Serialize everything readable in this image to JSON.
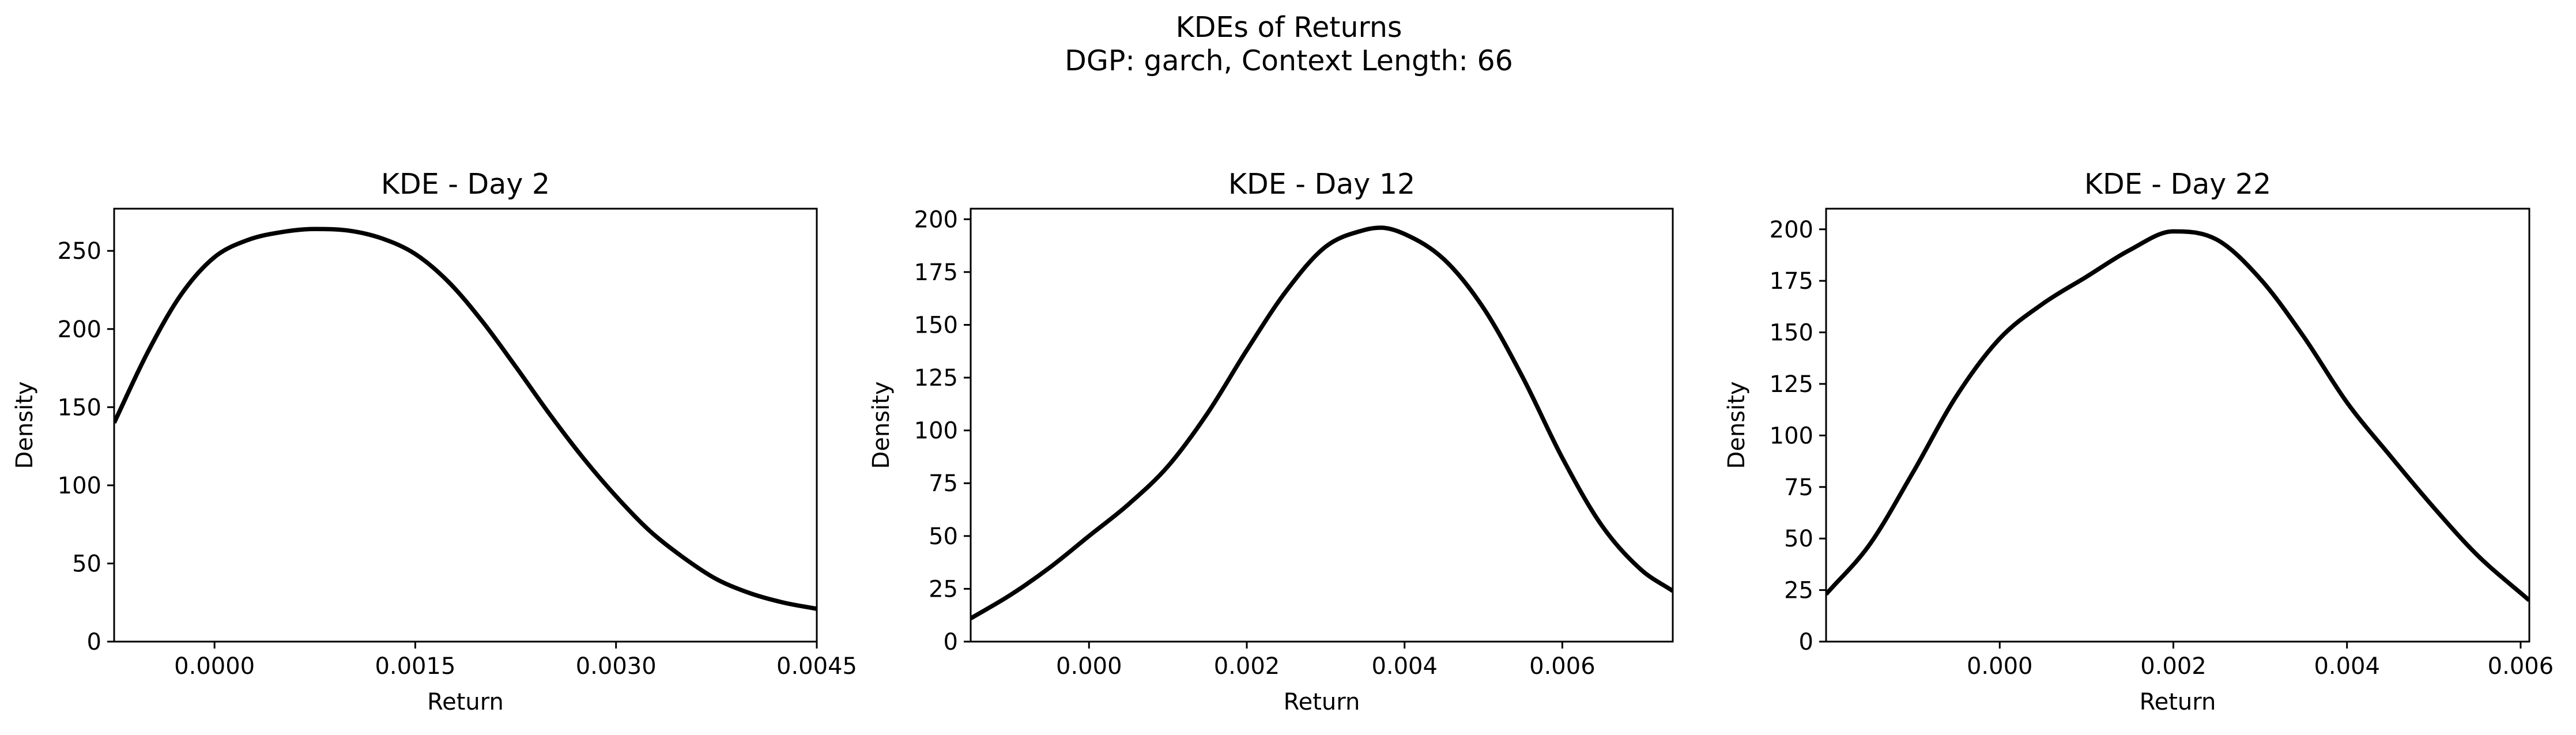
{
  "figure": {
    "title_line1": "KDEs of Returns",
    "title_line2": "DGP: garch, Context Length: 66"
  },
  "chart_data": [
    {
      "type": "line",
      "title": "KDE - Day 2",
      "xlabel": "Return",
      "ylabel": "Density",
      "xlim": [
        -0.00075,
        0.0045
      ],
      "ylim": [
        0,
        277
      ],
      "xticks": [
        0.0,
        0.0015,
        0.003,
        0.0045
      ],
      "xtick_labels": [
        "0.0000",
        "0.0015",
        "0.0030",
        "0.0045"
      ],
      "yticks": [
        0,
        50,
        100,
        150,
        200,
        250
      ],
      "ytick_labels": [
        "0",
        "50",
        "100",
        "150",
        "200",
        "250"
      ],
      "grid": false,
      "color": "#000000",
      "series": [
        {
          "x": [
            -0.00075,
            -0.0005,
            -0.00025,
            0.0,
            0.00025,
            0.0005,
            0.00075,
            0.001,
            0.00125,
            0.0015,
            0.00175,
            0.002,
            0.00225,
            0.0025,
            0.00275,
            0.003,
            0.00325,
            0.0035,
            0.00375,
            0.004,
            0.00425,
            0.0045
          ],
          "y": [
            140,
            185,
            222,
            246,
            257,
            262,
            264,
            263,
            258,
            248,
            230,
            205,
            176,
            146,
            118,
            93,
            71,
            54,
            40,
            31,
            25,
            21
          ]
        }
      ]
    },
    {
      "type": "line",
      "title": "KDE - Day 12",
      "xlabel": "Return",
      "ylabel": "Density",
      "xlim": [
        -0.0015,
        0.0074
      ],
      "ylim": [
        0,
        205
      ],
      "xticks": [
        0.0,
        0.002,
        0.004,
        0.006
      ],
      "xtick_labels": [
        "0.000",
        "0.002",
        "0.004",
        "0.006"
      ],
      "yticks": [
        0,
        25,
        50,
        75,
        100,
        125,
        150,
        175,
        200
      ],
      "ytick_labels": [
        "0",
        "25",
        "50",
        "75",
        "100",
        "125",
        "150",
        "175",
        "200"
      ],
      "grid": false,
      "color": "#000000",
      "series": [
        {
          "x": [
            -0.0015,
            -0.001,
            -0.0005,
            0.0,
            0.0005,
            0.001,
            0.0015,
            0.002,
            0.0025,
            0.003,
            0.0035,
            0.0037,
            0.004,
            0.0045,
            0.005,
            0.0055,
            0.006,
            0.0065,
            0.007,
            0.0074
          ],
          "y": [
            11,
            22,
            35,
            50,
            65,
            83,
            108,
            138,
            166,
            187,
            195,
            196,
            193,
            181,
            158,
            125,
            87,
            55,
            34,
            24
          ]
        }
      ]
    },
    {
      "type": "line",
      "title": "KDE - Day 22",
      "xlabel": "Return",
      "ylabel": "Density",
      "xlim": [
        -0.002,
        0.0061
      ],
      "ylim": [
        0,
        210
      ],
      "xticks": [
        0.0,
        0.002,
        0.004,
        0.006
      ],
      "xtick_labels": [
        "0.000",
        "0.002",
        "0.004",
        "0.006"
      ],
      "yticks": [
        0,
        25,
        50,
        75,
        100,
        125,
        150,
        175,
        200
      ],
      "ytick_labels": [
        "0",
        "25",
        "50",
        "75",
        "100",
        "125",
        "150",
        "175",
        "200"
      ],
      "grid": false,
      "color": "#000000",
      "series": [
        {
          "x": [
            -0.002,
            -0.0015,
            -0.001,
            -0.0005,
            0.0,
            0.0005,
            0.001,
            0.0015,
            0.002,
            0.0025,
            0.003,
            0.0035,
            0.004,
            0.0045,
            0.005,
            0.0055,
            0.0061
          ],
          "y": [
            23,
            47,
            82,
            119,
            147,
            164,
            177,
            190,
            199,
            195,
            176,
            148,
            116,
            90,
            65,
            42,
            20
          ]
        }
      ]
    }
  ]
}
